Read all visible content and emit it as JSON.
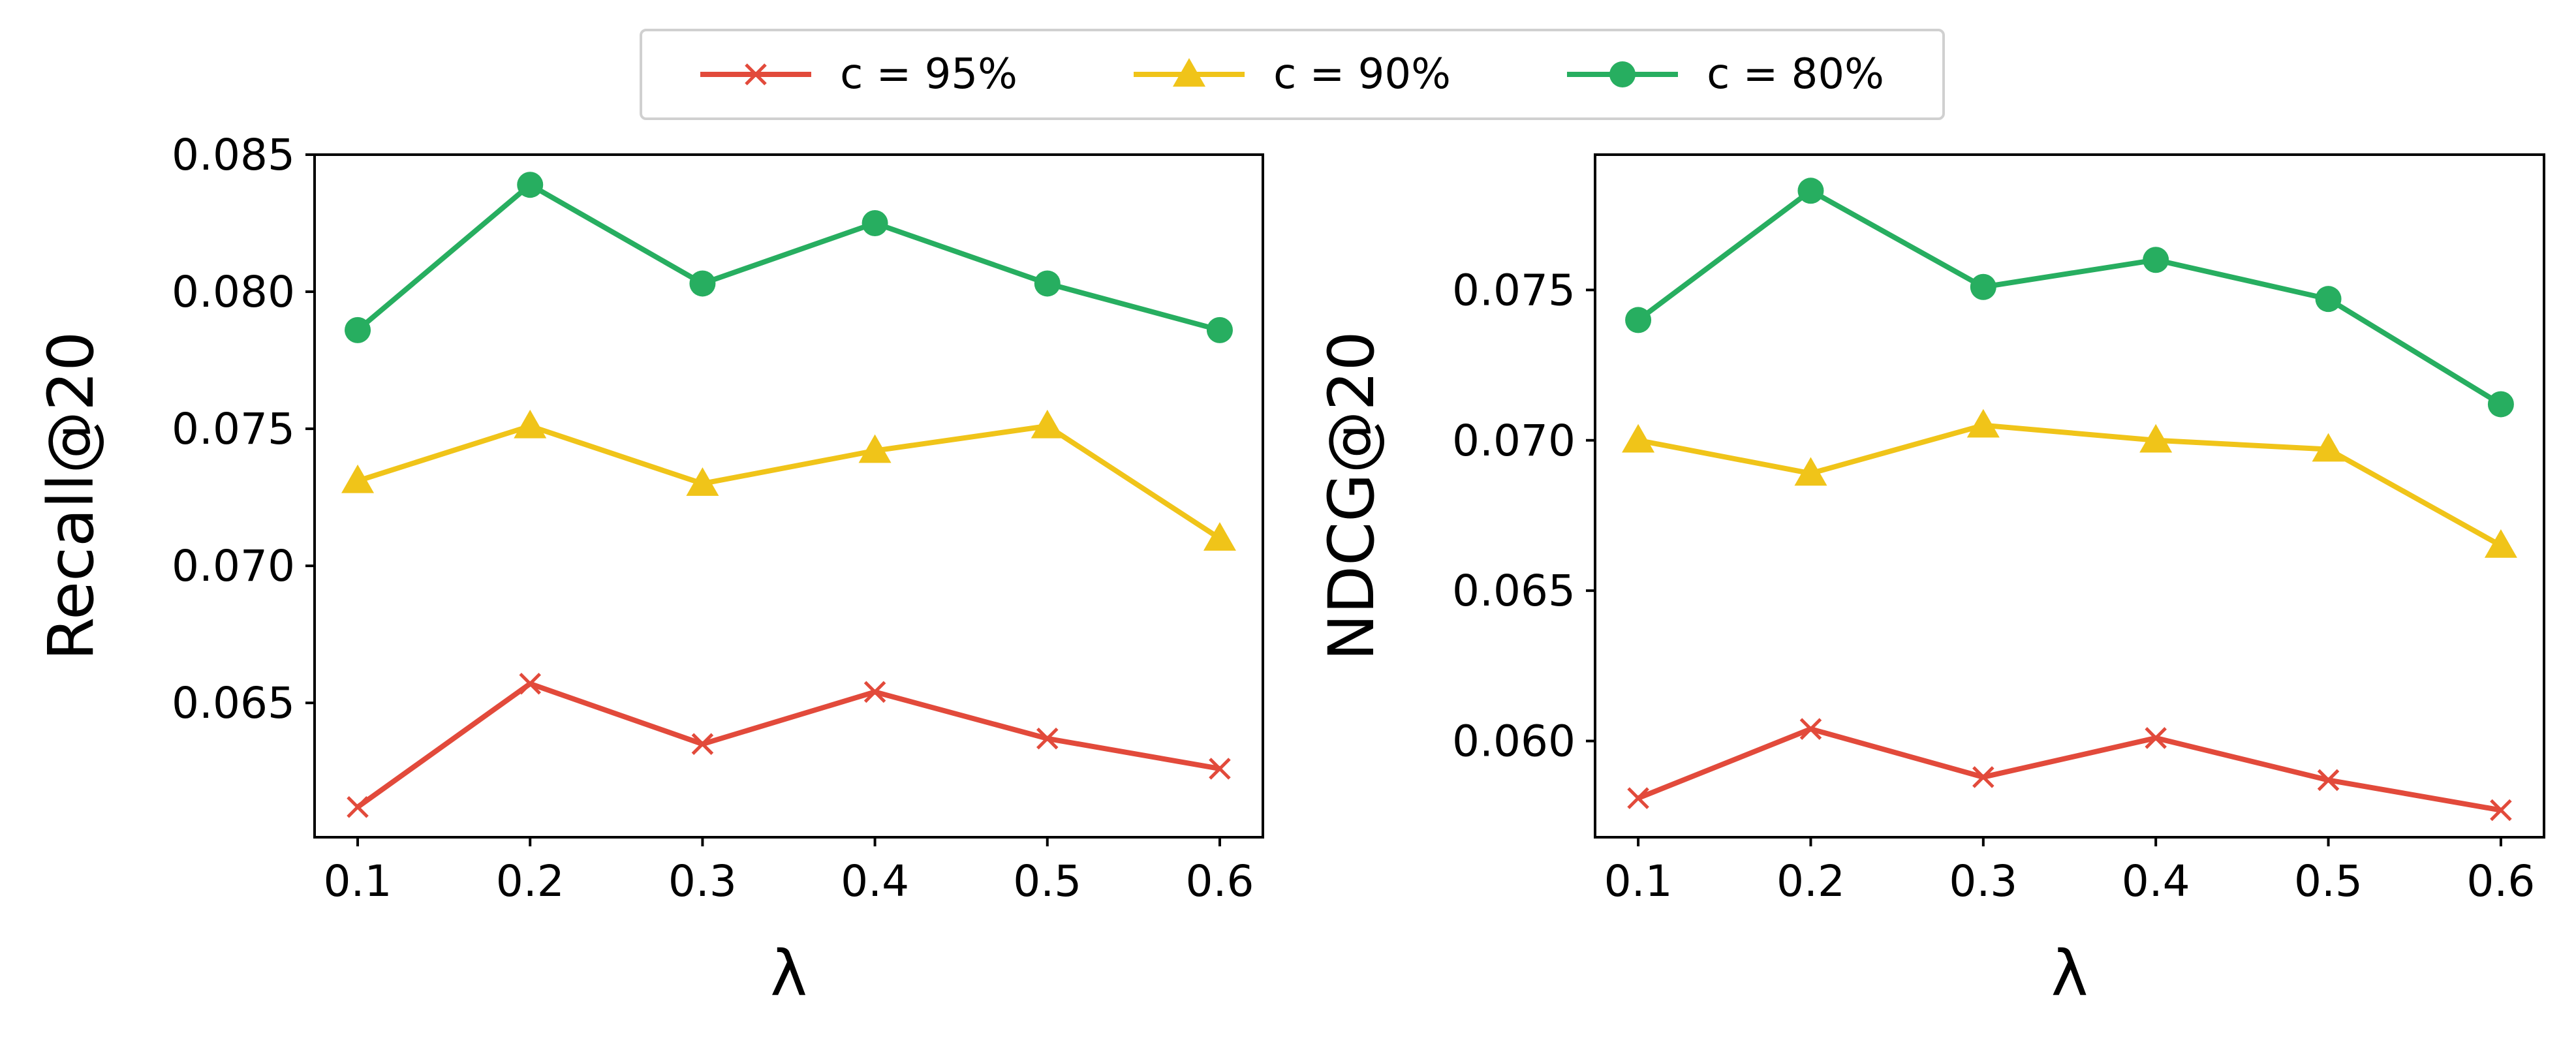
{
  "chart_data": [
    {
      "type": "line",
      "x": [
        0.1,
        0.2,
        0.3,
        0.4,
        0.5,
        0.6
      ],
      "xticks": [
        "0.1",
        "0.2",
        "0.3",
        "0.4",
        "0.5",
        "0.6"
      ],
      "xlim": [
        0.075,
        0.625
      ],
      "xlabel": "λ",
      "ylabel": "Recall@20",
      "ylim": [
        0.0601,
        0.085
      ],
      "yticks": [
        "0.065",
        "0.070",
        "0.075",
        "0.080",
        "0.085"
      ],
      "grid": false,
      "series": [
        {
          "name": "c = 95%",
          "color": "#e24a3b",
          "marker": "x",
          "values": [
            0.0612,
            0.0657,
            0.0635,
            0.0654,
            0.0637,
            0.0626
          ]
        },
        {
          "name": "c = 90%",
          "color": "#f0c419",
          "marker": "triangle",
          "values": [
            0.0731,
            0.0751,
            0.073,
            0.0742,
            0.0751,
            0.071
          ]
        },
        {
          "name": "c = 80%",
          "color": "#27ae60",
          "marker": "circle",
          "values": [
            0.0786,
            0.0839,
            0.0803,
            0.0825,
            0.0803,
            0.0786
          ]
        }
      ]
    },
    {
      "type": "line",
      "x": [
        0.1,
        0.2,
        0.3,
        0.4,
        0.5,
        0.6
      ],
      "xticks": [
        "0.1",
        "0.2",
        "0.3",
        "0.4",
        "0.5",
        "0.6"
      ],
      "xlim": [
        0.075,
        0.625
      ],
      "xlabel": "λ",
      "ylabel": "NDCG@20",
      "ylim": [
        0.0568,
        0.0795
      ],
      "yticks": [
        "0.060",
        "0.065",
        "0.070",
        "0.075"
      ],
      "grid": false,
      "series": [
        {
          "name": "c = 95%",
          "color": "#e24a3b",
          "marker": "x",
          "values": [
            0.0581,
            0.0604,
            0.0588,
            0.0601,
            0.0587,
            0.0577
          ]
        },
        {
          "name": "c = 90%",
          "color": "#f0c419",
          "marker": "triangle",
          "values": [
            0.07,
            0.0689,
            0.0705,
            0.07,
            0.0697,
            0.0665
          ]
        },
        {
          "name": "c = 80%",
          "color": "#27ae60",
          "marker": "circle",
          "values": [
            0.074,
            0.0783,
            0.0751,
            0.076,
            0.0747,
            0.0712
          ]
        }
      ]
    }
  ],
  "legend": {
    "placement": "top-center",
    "items": [
      {
        "label": "c = 95%",
        "color": "#e24a3b",
        "marker": "x"
      },
      {
        "label": "c = 90%",
        "color": "#f0c419",
        "marker": "triangle"
      },
      {
        "label": "c = 80%",
        "color": "#27ae60",
        "marker": "circle"
      }
    ]
  }
}
